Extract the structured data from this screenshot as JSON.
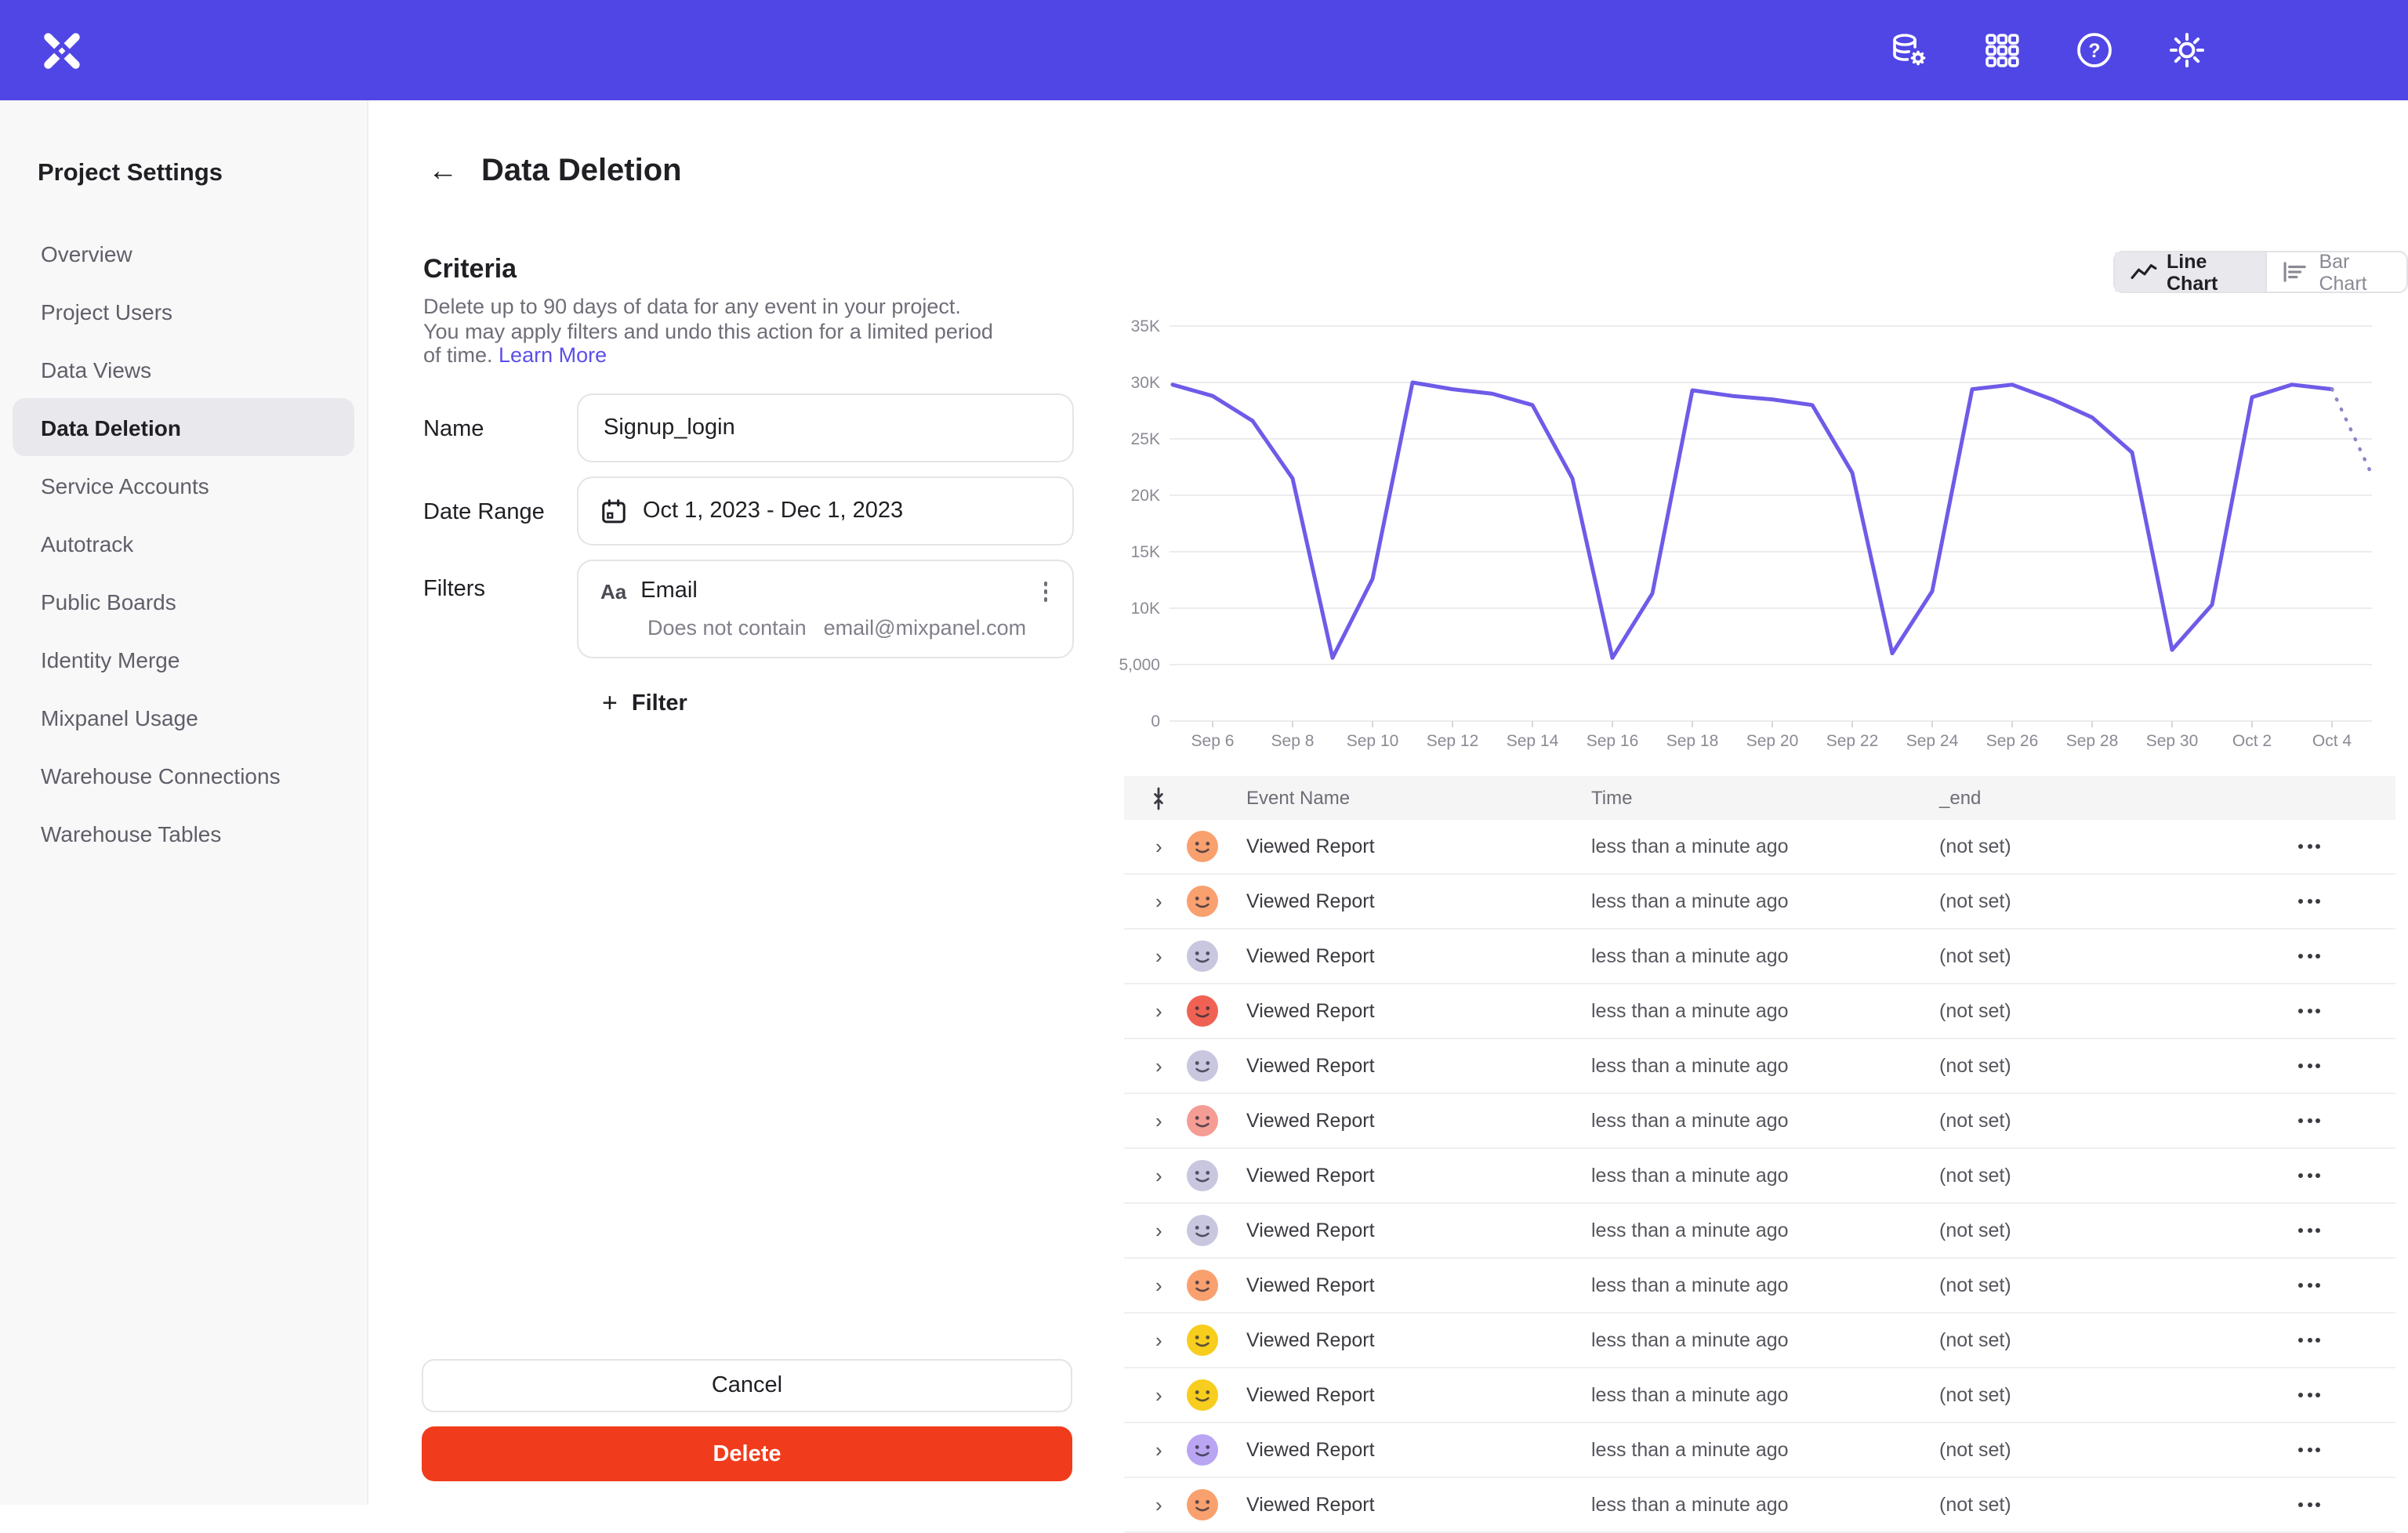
{
  "brand": {
    "name": "Mixpanel",
    "header_color": "#5046E5"
  },
  "header": {
    "icons": [
      "data-management-icon",
      "apps-grid-icon",
      "help-icon",
      "settings-icon"
    ]
  },
  "sidebar": {
    "title": "Project Settings",
    "items": [
      {
        "label": "Overview",
        "active": false
      },
      {
        "label": "Project Users",
        "active": false
      },
      {
        "label": "Data Views",
        "active": false
      },
      {
        "label": "Data Deletion",
        "active": true
      },
      {
        "label": "Service Accounts",
        "active": false
      },
      {
        "label": "Autotrack",
        "active": false
      },
      {
        "label": "Public Boards",
        "active": false
      },
      {
        "label": "Identity Merge",
        "active": false
      },
      {
        "label": "Mixpanel Usage",
        "active": false
      },
      {
        "label": "Warehouse Connections",
        "active": false
      },
      {
        "label": "Warehouse Tables",
        "active": false
      }
    ]
  },
  "page": {
    "title": "Data Deletion"
  },
  "criteria": {
    "heading": "Criteria",
    "description": "Delete up to 90 days of data for any event in your project. You may apply filters and undo this action for a limited period of time. ",
    "learn_more_label": "Learn More",
    "name_label": "Name",
    "name_value": "Signup_login",
    "date_range_label": "Date Range",
    "date_range_value": "Oct 1, 2023 - Dec 1, 2023",
    "filters_label": "Filters",
    "filter": {
      "type_badge": "Aa",
      "property": "Email",
      "operator": "Does not contain",
      "value": "email@mixpanel.com"
    },
    "add_filter_label": "Filter",
    "cancel_label": "Cancel",
    "delete_label": "Delete",
    "delete_color": "#F03C1C"
  },
  "chart_toggle": {
    "line_label": "Line Chart",
    "bar_label": "Bar Chart",
    "selected": "line"
  },
  "chart_data": {
    "type": "line",
    "title": "",
    "xlabel": "",
    "ylabel": "",
    "x": [
      "Sep 5",
      "Sep 6",
      "Sep 7",
      "Sep 8",
      "Sep 9",
      "Sep 10",
      "Sep 11",
      "Sep 12",
      "Sep 13",
      "Sep 14",
      "Sep 15",
      "Sep 16",
      "Sep 17",
      "Sep 18",
      "Sep 19",
      "Sep 20",
      "Sep 21",
      "Sep 22",
      "Sep 23",
      "Sep 24",
      "Sep 25",
      "Sep 26",
      "Sep 27",
      "Sep 28",
      "Sep 29",
      "Sep 30",
      "Oct 1",
      "Oct 2",
      "Oct 3",
      "Oct 4",
      "Oct 5"
    ],
    "values": [
      29800,
      28800,
      26600,
      21500,
      5600,
      12600,
      30000,
      29400,
      29000,
      28000,
      21500,
      5600,
      11300,
      29300,
      28800,
      28500,
      28000,
      22000,
      6000,
      11500,
      29400,
      29800,
      28500,
      26900,
      23800,
      6300,
      10300,
      28700,
      29800,
      29400,
      21800
    ],
    "x_tick_labels": [
      "Sep 6",
      "Sep 8",
      "Sep 10",
      "Sep 12",
      "Sep 14",
      "Sep 16",
      "Sep 18",
      "Sep 20",
      "Sep 22",
      "Sep 24",
      "Sep 26",
      "Sep 28",
      "Sep 30",
      "Oct 2",
      "Oct 4"
    ],
    "y_tick_labels": [
      "0",
      "5,000",
      "10K",
      "15K",
      "20K",
      "25K",
      "30K",
      "35K"
    ],
    "y_tick_values": [
      0,
      5000,
      10000,
      15000,
      20000,
      25000,
      30000,
      35000
    ],
    "ylim": [
      0,
      35000
    ],
    "grid": "horizontal",
    "legend": "none",
    "line_color": "#6E5BE8",
    "projected_tail_points": 2
  },
  "table": {
    "columns": [
      "Event Name",
      "Time",
      "_end"
    ],
    "rows": [
      {
        "event_name": "Viewed Report",
        "time": "less than a minute ago",
        "end": "(not set)",
        "avatar_color": "#F9A06F"
      },
      {
        "event_name": "Viewed Report",
        "time": "less than a minute ago",
        "end": "(not set)",
        "avatar_color": "#F9A06F"
      },
      {
        "event_name": "Viewed Report",
        "time": "less than a minute ago",
        "end": "(not set)",
        "avatar_color": "#C9C7DF"
      },
      {
        "event_name": "Viewed Report",
        "time": "less than a minute ago",
        "end": "(not set)",
        "avatar_color": "#EF6253"
      },
      {
        "event_name": "Viewed Report",
        "time": "less than a minute ago",
        "end": "(not set)",
        "avatar_color": "#C9C7DF"
      },
      {
        "event_name": "Viewed Report",
        "time": "less than a minute ago",
        "end": "(not set)",
        "avatar_color": "#F59C94"
      },
      {
        "event_name": "Viewed Report",
        "time": "less than a minute ago",
        "end": "(not set)",
        "avatar_color": "#C9C7DF"
      },
      {
        "event_name": "Viewed Report",
        "time": "less than a minute ago",
        "end": "(not set)",
        "avatar_color": "#C9C7DF"
      },
      {
        "event_name": "Viewed Report",
        "time": "less than a minute ago",
        "end": "(not set)",
        "avatar_color": "#F9A06F"
      },
      {
        "event_name": "Viewed Report",
        "time": "less than a minute ago",
        "end": "(not set)",
        "avatar_color": "#F7CD1E"
      },
      {
        "event_name": "Viewed Report",
        "time": "less than a minute ago",
        "end": "(not set)",
        "avatar_color": "#F7CD1E"
      },
      {
        "event_name": "Viewed Report",
        "time": "less than a minute ago",
        "end": "(not set)",
        "avatar_color": "#B9A5F2"
      },
      {
        "event_name": "Viewed Report",
        "time": "less than a minute ago",
        "end": "(not set)",
        "avatar_color": "#F9A06F"
      }
    ]
  }
}
